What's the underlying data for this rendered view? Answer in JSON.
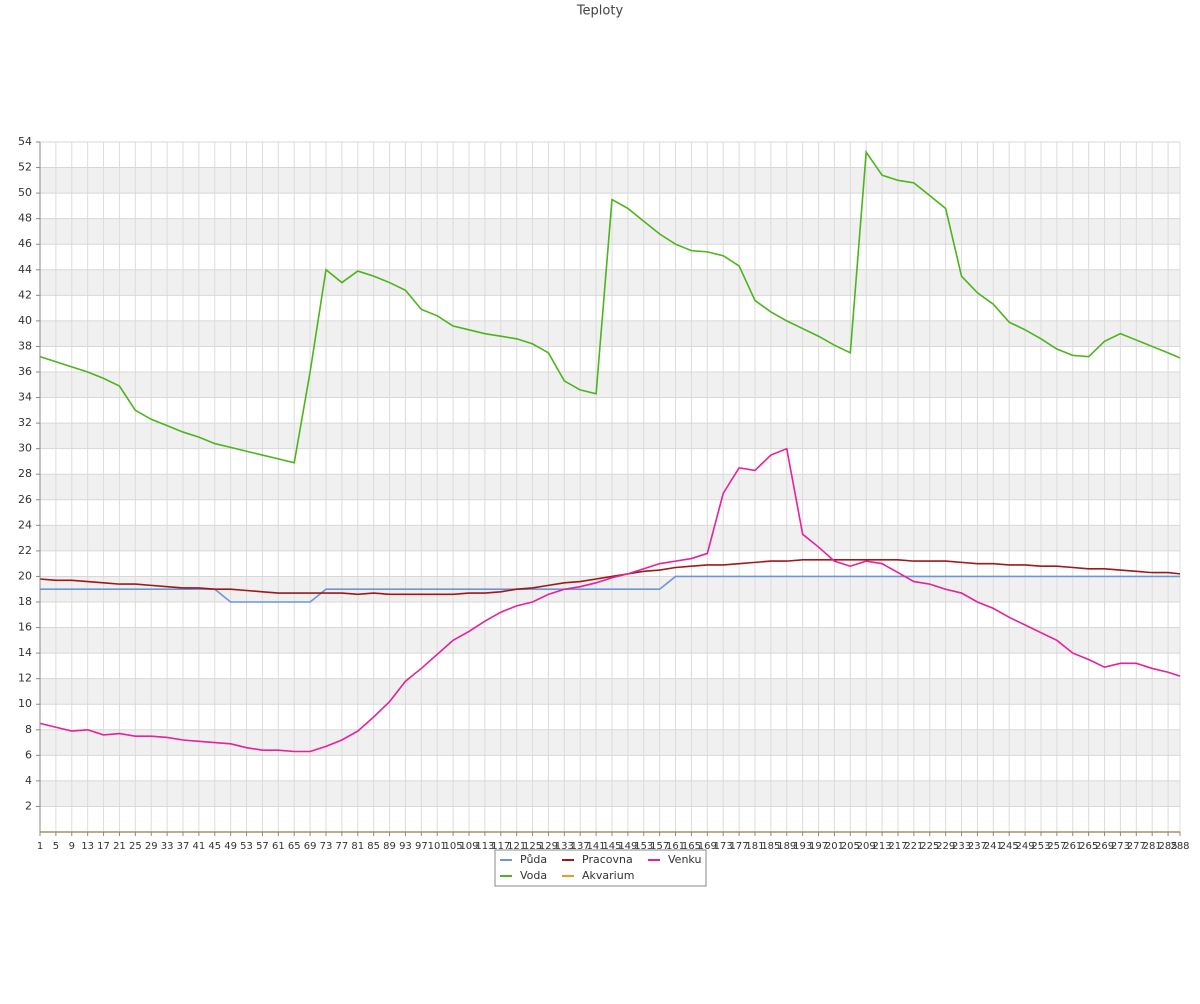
{
  "chart_data": {
    "type": "line",
    "title": "Teploty",
    "x": [
      1,
      5,
      9,
      13,
      17,
      21,
      25,
      29,
      33,
      37,
      41,
      45,
      49,
      53,
      57,
      61,
      65,
      69,
      73,
      77,
      81,
      85,
      89,
      93,
      97,
      101,
      105,
      109,
      113,
      117,
      121,
      125,
      129,
      133,
      137,
      141,
      145,
      149,
      153,
      157,
      161,
      165,
      169,
      173,
      177,
      181,
      185,
      189,
      193,
      197,
      201,
      205,
      209,
      213,
      217,
      221,
      225,
      229,
      233,
      237,
      241,
      245,
      249,
      253,
      257,
      261,
      265,
      269,
      273,
      277,
      281,
      285,
      288
    ],
    "xlim": [
      1,
      288
    ],
    "ylim": [
      0,
      54
    ],
    "yticks": [
      2,
      4,
      6,
      8,
      10,
      12,
      14,
      16,
      18,
      20,
      22,
      24,
      26,
      28,
      30,
      32,
      34,
      36,
      38,
      40,
      42,
      44,
      46,
      48,
      50,
      52,
      54
    ],
    "grid": true,
    "legend": "bottom",
    "series": [
      {
        "name": "Půda",
        "color": "#6b96dc",
        "values": [
          19,
          19,
          19,
          19,
          19,
          19,
          19,
          19,
          19,
          19,
          19,
          19,
          18,
          18,
          18,
          18,
          18,
          18,
          19,
          19,
          19,
          19,
          19,
          19,
          19,
          19,
          19,
          19,
          19,
          19,
          19,
          19,
          19,
          19,
          19,
          19,
          19,
          19,
          19,
          19,
          20,
          20,
          20,
          20,
          20,
          20,
          20,
          20,
          20,
          20,
          20,
          20,
          20,
          20,
          20,
          20,
          20,
          20,
          20,
          20,
          20,
          20,
          20,
          20,
          20,
          20,
          20,
          20,
          20,
          20,
          20,
          20,
          20
        ]
      },
      {
        "name": "Pracovna",
        "color": "#a01818",
        "values": [
          19.8,
          19.7,
          19.7,
          19.6,
          19.5,
          19.4,
          19.4,
          19.3,
          19.2,
          19.1,
          19.1,
          19.0,
          19.0,
          18.9,
          18.8,
          18.7,
          18.7,
          18.7,
          18.7,
          18.7,
          18.6,
          18.7,
          18.6,
          18.6,
          18.6,
          18.6,
          18.6,
          18.7,
          18.7,
          18.8,
          19.0,
          19.1,
          19.3,
          19.5,
          19.6,
          19.8,
          20.0,
          20.2,
          20.4,
          20.5,
          20.7,
          20.8,
          20.9,
          20.9,
          21.0,
          21.1,
          21.2,
          21.2,
          21.3,
          21.3,
          21.3,
          21.3,
          21.3,
          21.3,
          21.3,
          21.2,
          21.2,
          21.2,
          21.1,
          21.0,
          21.0,
          20.9,
          20.9,
          20.8,
          20.8,
          20.7,
          20.6,
          20.6,
          20.5,
          20.4,
          20.3,
          20.3,
          20.2
        ]
      },
      {
        "name": "Venku",
        "color": "#e8209a",
        "values": [
          8.5,
          8.2,
          7.9,
          8.0,
          7.6,
          7.7,
          7.5,
          7.5,
          7.4,
          7.2,
          7.1,
          7.0,
          6.9,
          6.6,
          6.4,
          6.4,
          6.3,
          6.3,
          6.7,
          7.2,
          7.9,
          9.0,
          10.2,
          11.8,
          12.8,
          13.9,
          15.0,
          15.7,
          16.5,
          17.2,
          17.7,
          18.0,
          18.6,
          19.0,
          19.2,
          19.5,
          19.9,
          20.2,
          20.6,
          21.0,
          21.2,
          21.4,
          21.8,
          26.5,
          28.5,
          28.3,
          29.5,
          30.0,
          23.3,
          22.3,
          21.2,
          20.8,
          21.2,
          21.0,
          20.3,
          19.6,
          19.4,
          19.0,
          18.7,
          18.0,
          17.5,
          16.8,
          16.2,
          15.6,
          15.0,
          14.0,
          13.5,
          12.9,
          13.2,
          13.2,
          12.8,
          12.5,
          12.2
        ]
      },
      {
        "name": "Voda",
        "color": "#4cb41c",
        "values": [
          37.2,
          36.8,
          36.4,
          36.0,
          35.5,
          34.9,
          33.0,
          32.3,
          31.8,
          31.3,
          30.9,
          30.4,
          30.1,
          29.8,
          29.5,
          29.2,
          28.9,
          36.0,
          44.0,
          43.0,
          43.9,
          43.5,
          43.0,
          42.4,
          40.9,
          40.4,
          39.6,
          39.3,
          39.0,
          38.8,
          38.6,
          38.2,
          37.5,
          35.3,
          34.6,
          34.3,
          49.5,
          48.8,
          47.8,
          46.8,
          46.0,
          45.5,
          45.4,
          45.1,
          44.3,
          41.6,
          40.7,
          40.0,
          39.4,
          38.8,
          38.1,
          37.5,
          53.2,
          51.4,
          51.0,
          50.8,
          49.8,
          48.8,
          43.5,
          42.2,
          41.3,
          39.9,
          39.3,
          38.6,
          37.8,
          37.3,
          37.2,
          38.4,
          39.0,
          38.5,
          38.0,
          37.5,
          37.1
        ]
      },
      {
        "name": "Akvarium",
        "color": "#e8a020",
        "values": [
          0,
          0,
          0,
          0,
          0,
          0,
          0,
          0,
          0,
          0,
          0,
          0,
          0,
          0,
          0,
          0,
          0,
          0,
          0,
          0,
          0,
          0,
          0,
          0,
          0,
          0,
          0,
          0,
          0,
          0,
          0,
          0,
          0,
          0,
          0,
          0,
          0,
          0,
          0,
          0,
          0,
          0,
          0,
          0,
          0,
          0,
          0,
          0,
          0,
          0,
          0,
          0,
          0,
          0,
          0,
          0,
          0,
          0,
          0,
          0,
          0,
          0,
          0,
          0,
          0,
          0,
          0,
          0,
          0,
          0,
          0,
          0,
          0
        ]
      }
    ]
  }
}
